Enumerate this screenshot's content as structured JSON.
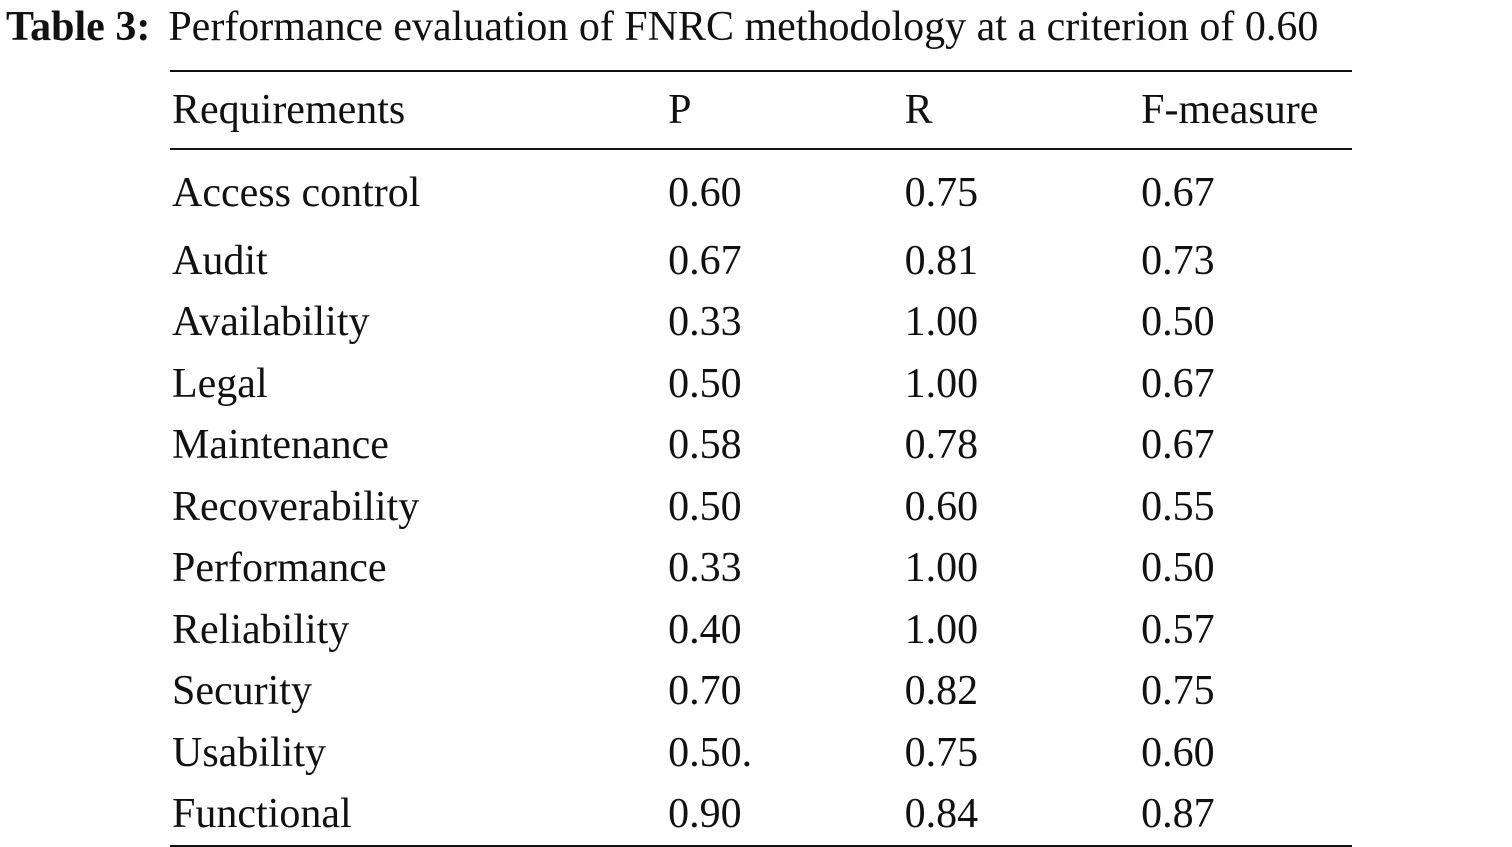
{
  "caption": {
    "label": "Table 3:",
    "text": "Performance evaluation of FNRC methodology at a criterion of 0.60"
  },
  "table": {
    "headers": [
      "Requirements",
      "P",
      "R",
      "F-measure"
    ],
    "rows": [
      [
        "Access control",
        "0.60",
        "0.75",
        "0.67"
      ],
      [
        "Audit",
        "0.67",
        "0.81",
        "0.73"
      ],
      [
        "Availability",
        "0.33",
        "1.00",
        "0.50"
      ],
      [
        "Legal",
        "0.50",
        "1.00",
        "0.67"
      ],
      [
        "Maintenance",
        "0.58",
        "0.78",
        "0.67"
      ],
      [
        "Recoverability",
        "0.50",
        "0.60",
        "0.55"
      ],
      [
        "Performance",
        "0.33",
        "1.00",
        "0.50"
      ],
      [
        "Reliability",
        "0.40",
        "1.00",
        "0.57"
      ],
      [
        "Security",
        "0.70",
        "0.82",
        "0.75"
      ],
      [
        "Usability",
        "0.50.",
        "0.75",
        "0.60"
      ],
      [
        "Functional",
        "0.90",
        "0.84",
        "0.87"
      ]
    ]
  }
}
